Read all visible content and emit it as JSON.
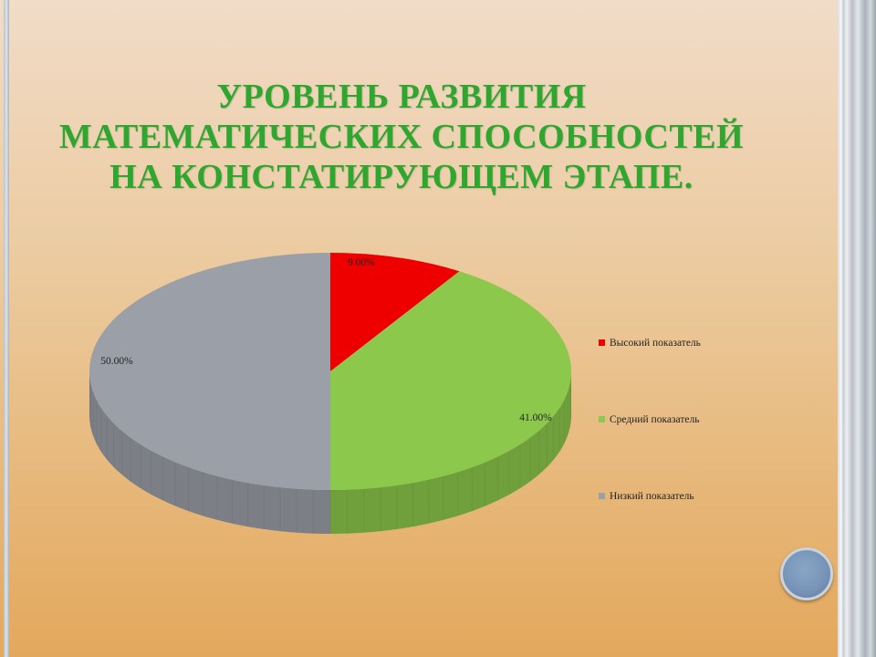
{
  "slide": {
    "title_lines": [
      "УРОВЕНЬ РАЗВИТИЯ",
      "МАТЕМАТИЧЕСКИХ СПОСОБНОСТЕЙ",
      "НА КОНСТАТИРУЮЩЕМ ЭТАПЕ."
    ],
    "title_color": "#2fa72f"
  },
  "chart_data": {
    "type": "pie",
    "three_d": true,
    "categories": [
      "Высокий показатель",
      "Средний показатель",
      "Низкий показатель"
    ],
    "values": [
      9.0,
      41.0,
      50.0
    ],
    "data_labels": [
      "9.00%",
      "41.00%",
      "50.00%"
    ],
    "colors": [
      "#ee0000",
      "#8cc84b",
      "#9b9fa7"
    ],
    "legend_position": "right"
  }
}
